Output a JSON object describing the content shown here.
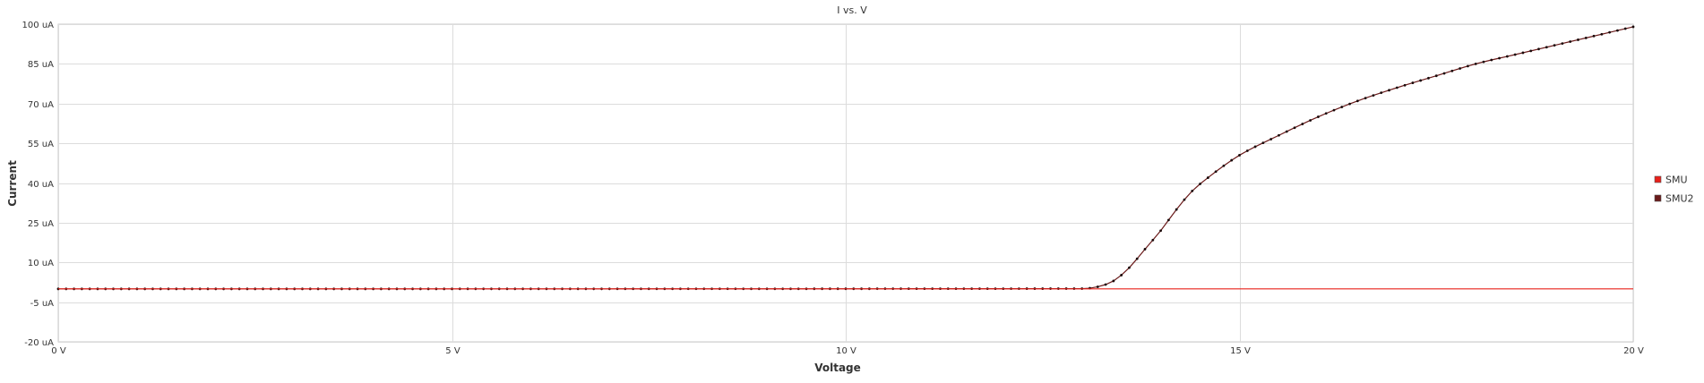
{
  "chart_data": {
    "type": "line",
    "title": "I vs. V",
    "xlabel": "Voltage",
    "ylabel": "Current",
    "xlim": [
      0,
      20
    ],
    "ylim": [
      -20,
      100
    ],
    "x_ticks": [
      0,
      5,
      10,
      15,
      20
    ],
    "x_tick_labels": [
      "0 V",
      "5 V",
      "10 V",
      "15 V",
      "20 V"
    ],
    "y_ticks": [
      -20,
      -5,
      10,
      25,
      40,
      55,
      70,
      85,
      100
    ],
    "y_tick_labels": [
      "-20 uA",
      "-5 uA",
      "10 uA",
      "25 uA",
      "40 uA",
      "55 uA",
      "70 uA",
      "85 uA",
      "100 uA"
    ],
    "grid": true,
    "legend_position": "right",
    "x_step": 0.1,
    "x": [
      0,
      13,
      13.2,
      13.4,
      13.6,
      13.8,
      14,
      14.2,
      14.4,
      14.6,
      14.8,
      15,
      15.5,
      16,
      16.5,
      17,
      17.5,
      18,
      18.5,
      19,
      19.5,
      20
    ],
    "series": [
      {
        "name": "SMU",
        "color": "#e8201a",
        "marker": "none",
        "values": [
          0,
          0,
          0,
          0,
          0,
          0,
          0,
          0,
          0,
          0,
          0,
          0,
          0,
          0,
          0,
          0,
          0,
          0,
          0,
          0,
          0,
          0
        ]
      },
      {
        "name": "SMU2",
        "color": "#6a1a1a",
        "marker": "dot",
        "values": [
          0,
          0.1,
          0.8,
          3,
          8,
          15,
          22,
          30,
          37,
          42,
          46.5,
          50.5,
          58,
          65,
          71,
          76,
          80.5,
          85,
          88.5,
          92,
          95.5,
          99
        ]
      }
    ]
  }
}
